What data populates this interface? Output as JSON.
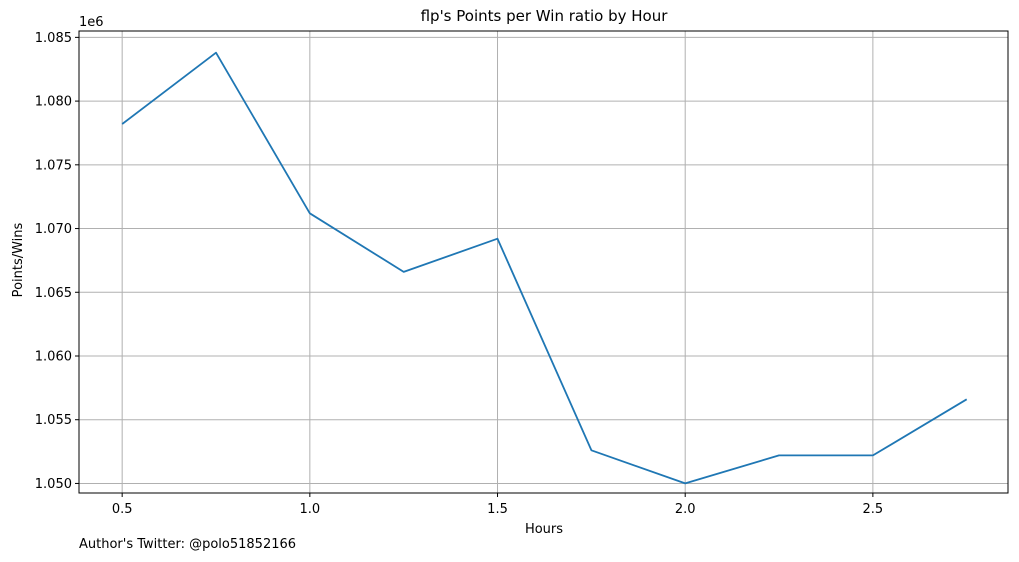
{
  "chart_data": {
    "type": "line",
    "title": "flp's Points per Win ratio by Hour",
    "xlabel": "Hours",
    "ylabel": "Points/Wins",
    "y_offset_label": "1e6",
    "xlim": [
      0.385,
      2.86
    ],
    "ylim": [
      1.04925,
      1.0855
    ],
    "x_ticks": [
      0.5,
      1.0,
      1.5,
      2.0,
      2.5
    ],
    "x_tick_labels": [
      "0.5",
      "1.0",
      "1.5",
      "2.0",
      "2.5"
    ],
    "y_ticks": [
      1.05,
      1.055,
      1.06,
      1.065,
      1.07,
      1.075,
      1.08,
      1.085
    ],
    "y_tick_labels": [
      "1.050",
      "1.055",
      "1.060",
      "1.065",
      "1.070",
      "1.075",
      "1.080",
      "1.085"
    ],
    "grid": true,
    "series": [
      {
        "color": "#1f77b4",
        "x": [
          0.5,
          0.75,
          1.0,
          1.25,
          1.5,
          1.75,
          2.0,
          2.25,
          2.5,
          2.75
        ],
        "y": [
          1.0782,
          1.0838,
          1.0712,
          1.0666,
          1.0692,
          1.0526,
          1.05,
          1.0522,
          1.0522,
          1.0566
        ]
      }
    ]
  },
  "footer": {
    "text": "Author's Twitter: @polo51852166"
  }
}
